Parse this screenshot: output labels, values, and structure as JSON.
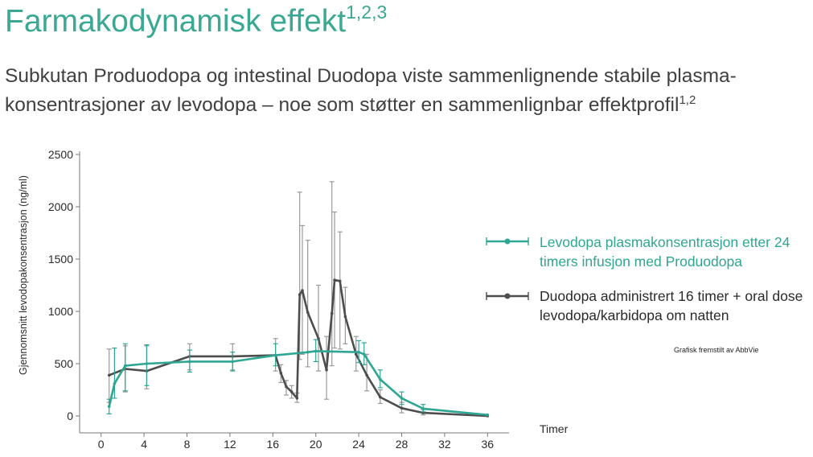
{
  "header": {
    "title": "Farmakodynamisk effekt",
    "title_refs": "1,2,3",
    "subtitle": "Subkutan Produodopa og intestinal Duodopa viste sammenlignende stabile plasma-konsentrasjoner av levodopa – noe som støtter en sammenlignbar effektprofil",
    "subtitle_refs": "1,2"
  },
  "credit": "Grafisk fremstilt av AbbVie",
  "chart_data": {
    "type": "line",
    "xlabel": "Timer",
    "ylabel": "Gjennomsnitt levodopakonsentrasjon (ng/ml)",
    "xlim": [
      -2,
      38
    ],
    "ylim": [
      0,
      2500
    ],
    "xticks": [
      0,
      4,
      8,
      12,
      16,
      20,
      24,
      28,
      32,
      36
    ],
    "yticks": [
      0,
      500,
      1000,
      1500,
      2000,
      2500
    ],
    "grid": false,
    "legend_position": "right",
    "series": [
      {
        "name": "Levodopa plasmakonsentrasjon etter 24 timers infusjon med Produodopa",
        "color": "#2ea693",
        "x": [
          0.75,
          1.25,
          2.25,
          4.25,
          8.25,
          12.25,
          16.25,
          19.25,
          20,
          24,
          24.5,
          26,
          28,
          30,
          36
        ],
        "y": [
          90,
          310,
          480,
          500,
          520,
          520,
          580,
          610,
          620,
          610,
          590,
          350,
          170,
          70,
          10
        ],
        "low": [
          20,
          170,
          240,
          290,
          420,
          430,
          480,
          null,
          520,
          510,
          490,
          270,
          110,
          40,
          null
        ],
        "high": [
          160,
          650,
          690,
          680,
          630,
          610,
          690,
          null,
          730,
          720,
          700,
          440,
          230,
          110,
          null
        ]
      },
      {
        "name": "Duodopa administrert 16 timer + oral dose levodopa/karbidopa om natten",
        "color": "#4d4d4d",
        "x": [
          0.75,
          2.25,
          4.25,
          8.25,
          12.25,
          16.25,
          16.75,
          17.25,
          17.75,
          18.25,
          18.5,
          18.75,
          19.25,
          20.25,
          21,
          21.5,
          21.75,
          22.25,
          22.75,
          23.75,
          24.75,
          26,
          28,
          30,
          36
        ],
        "y": [
          390,
          450,
          430,
          570,
          570,
          580,
          410,
          280,
          230,
          170,
          1160,
          1200,
          990,
          740,
          440,
          980,
          1300,
          1290,
          950,
          590,
          390,
          180,
          75,
          30,
          0
        ],
        "low": [
          130,
          230,
          260,
          440,
          440,
          430,
          320,
          200,
          170,
          130,
          540,
          590,
          470,
          430,
          160,
          480,
          650,
          640,
          690,
          430,
          240,
          120,
          30,
          10,
          null
        ],
        "high": [
          640,
          670,
          670,
          690,
          690,
          740,
          490,
          340,
          290,
          220,
          2140,
          1820,
          1680,
          1250,
          760,
          2240,
          1950,
          1760,
          1230,
          760,
          590,
          250,
          130,
          60,
          null
        ]
      }
    ]
  }
}
